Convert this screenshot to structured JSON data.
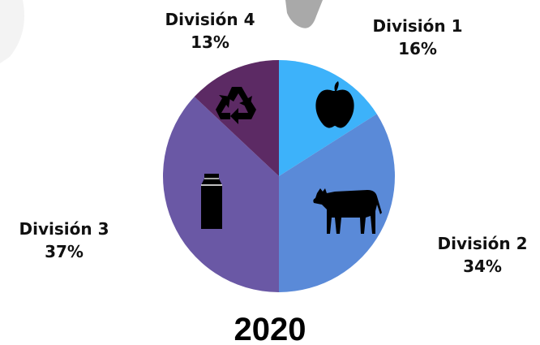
{
  "chart_data": {
    "type": "pie",
    "title": "2020",
    "start_direction": "top",
    "direction": "clockwise",
    "slices": [
      {
        "label": "División 1",
        "value": 16,
        "display": "16%",
        "color": "#3db2fa",
        "icon": "apple-icon"
      },
      {
        "label": "División 2",
        "value": 34,
        "display": "34%",
        "color": "#5a8ad8",
        "icon": "cow-icon"
      },
      {
        "label": "División 3",
        "value": 37,
        "display": "37%",
        "color": "#6a58a5",
        "icon": "milk-carton-icon"
      },
      {
        "label": "División 4",
        "value": 13,
        "display": "13%",
        "color": "#5c2a64",
        "icon": "recycle-icon"
      }
    ]
  }
}
